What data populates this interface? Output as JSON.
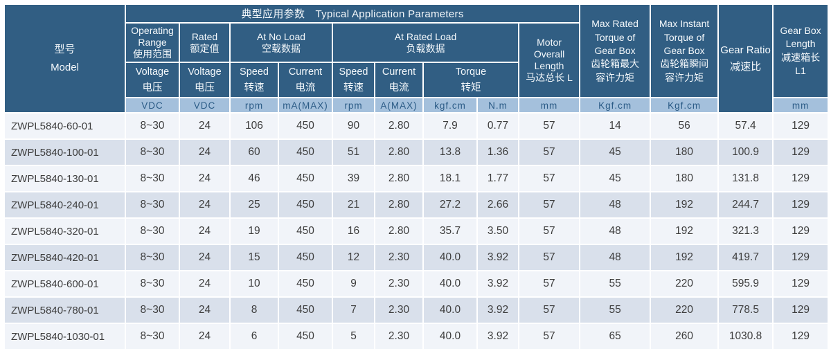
{
  "colors": {
    "header_bg": "#315E83",
    "header_text": "#F4F8FB",
    "units_bg": "#A4C0DC",
    "units_text": "#2B5B86",
    "row_odd_bg": "#F1F4F9",
    "row_even_bg": "#D9E0EB",
    "body_text": "#3D3D3D",
    "grid": "#FFFFFF"
  },
  "table": {
    "title_band": "典型应用参数　Typical Application Parameters",
    "headers": {
      "model": "型号\nModel",
      "operating_range": "Operating\nRange\n使用范围",
      "rated": "Rated\n额定值",
      "at_no_load": "At No Load\n空载数据",
      "at_rated_load": "At Rated Load\n负载数据",
      "voltage_operating": "Voltage\n电压",
      "voltage_rated": "Voltage\n电压",
      "speed_no_load": "Speed\n转速",
      "current_no_load": "Current\n电流",
      "speed_rated_load": "Speed\n转速",
      "current_rated_load": "Current\n电流",
      "torque": "Torque\n转矩",
      "motor_overall_length": "Motor\nOverall\nLength\n马达总长 L",
      "max_rated_torque": "Max Rated\nTorque of\nGear Box\n齿轮箱最大\n容许力矩",
      "max_instant_torque": "Max Instant\nTorque of\nGear Box\n齿轮箱瞬间\n容许力矩",
      "gear_ratio": "Gear Ratio\n减速比",
      "gearbox_length": "Gear Box\nLength\n减速箱长\nL1"
    },
    "units": {
      "operating_voltage": "VDC",
      "rated_voltage": "VDC",
      "speed_no_load": "rpm",
      "current_no_load": "mA(MAX)",
      "speed_rated_load": "rpm",
      "current_rated_load": "A(MAX)",
      "torque_kgfcm": "kgf.cm",
      "torque_nm": "N.m",
      "motor_overall_length": "mm",
      "max_rated_torque": "Kgf.cm",
      "max_instant_torque": "Kgf.cm",
      "gearbox_length": "mm"
    },
    "column_keys": [
      "model",
      "operating-voltage",
      "rated-voltage",
      "no-load-speed",
      "no-load-current",
      "rated-load-speed",
      "rated-load-current",
      "torque-kgfcm",
      "torque-nm",
      "motor-overall-length",
      "max-rated-torque",
      "max-instant-torque",
      "gear-ratio",
      "gearbox-length"
    ]
  },
  "chart_data": {
    "type": "table",
    "title": "典型应用参数 Typical Application Parameters",
    "columns": [
      "型号 Model",
      "Operating Range 使用范围 Voltage 电压 (VDC)",
      "Rated 额定值 Voltage 电压 (VDC)",
      "At No Load 空载数据 Speed 转速 (rpm)",
      "At No Load 空载数据 Current 电流 mA(MAX)",
      "At Rated Load 负载数据 Speed 转速 (rpm)",
      "At Rated Load 负载数据 Current 电流 A(MAX)",
      "At Rated Load Torque 转矩 (kgf.cm)",
      "At Rated Load Torque 转矩 (N.m)",
      "Motor Overall Length 马达总长 L (mm)",
      "Max Rated Torque of Gear Box 齿轮箱最大容许力矩 (Kgf.cm)",
      "Max Instant Torque of Gear Box 齿轮箱瞬间容许力矩 (Kgf.cm)",
      "Gear Ratio 减速比",
      "Gear Box Length 减速箱长 L1 (mm)"
    ],
    "rows": [
      [
        "ZWPL5840-60-01",
        "8~30",
        "24",
        "106",
        "450",
        "90",
        "2.80",
        "7.9",
        "0.77",
        "57",
        "14",
        "56",
        "57.4",
        "129"
      ],
      [
        "ZWPL5840-100-01",
        "8~30",
        "24",
        "60",
        "450",
        "51",
        "2.80",
        "13.8",
        "1.36",
        "57",
        "45",
        "180",
        "100.9",
        "129"
      ],
      [
        "ZWPL5840-130-01",
        "8~30",
        "24",
        "46",
        "450",
        "39",
        "2.80",
        "18.1",
        "1.77",
        "57",
        "45",
        "180",
        "131.8",
        "129"
      ],
      [
        "ZWPL5840-240-01",
        "8~30",
        "24",
        "25",
        "450",
        "21",
        "2.80",
        "27.2",
        "2.66",
        "57",
        "48",
        "192",
        "244.7",
        "129"
      ],
      [
        "ZWPL5840-320-01",
        "8~30",
        "24",
        "19",
        "450",
        "16",
        "2.80",
        "35.7",
        "3.50",
        "57",
        "48",
        "192",
        "321.3",
        "129"
      ],
      [
        "ZWPL5840-420-01",
        "8~30",
        "24",
        "15",
        "450",
        "12",
        "2.30",
        "40.0",
        "3.92",
        "57",
        "48",
        "192",
        "419.7",
        "129"
      ],
      [
        "ZWPL5840-600-01",
        "8~30",
        "24",
        "10",
        "450",
        "9",
        "2.30",
        "40.0",
        "3.92",
        "57",
        "55",
        "220",
        "595.9",
        "129"
      ],
      [
        "ZWPL5840-780-01",
        "8~30",
        "24",
        "8",
        "450",
        "7",
        "2.30",
        "40.0",
        "3.92",
        "57",
        "55",
        "220",
        "778.5",
        "129"
      ],
      [
        "ZWPL5840-1030-01",
        "8~30",
        "24",
        "6",
        "450",
        "5",
        "2.30",
        "40.0",
        "3.92",
        "57",
        "65",
        "260",
        "1030.8",
        "129"
      ]
    ]
  }
}
